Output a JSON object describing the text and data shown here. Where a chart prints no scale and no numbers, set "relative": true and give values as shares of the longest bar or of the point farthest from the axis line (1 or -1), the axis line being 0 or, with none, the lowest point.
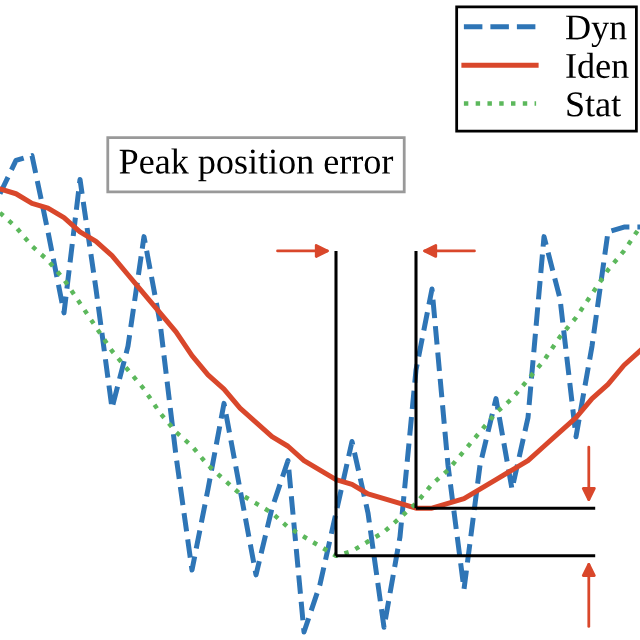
{
  "chart_data": {
    "type": "line",
    "relative": true,
    "legend": "top right",
    "annotations": [
      "Peak position error"
    ],
    "ref_lines": [
      {
        "axis": "y",
        "value": 0.26,
        "color": "#000000"
      },
      {
        "axis": "y",
        "value": 0.16,
        "color": "#000000"
      }
    ],
    "categories": [
      null,
      null,
      null,
      null,
      null,
      null,
      null,
      null,
      null,
      null,
      null,
      null,
      null,
      null,
      null,
      null,
      null,
      null,
      null,
      null,
      null,
      null,
      null,
      null,
      null,
      null,
      null,
      null,
      null,
      null,
      null,
      null,
      null,
      null,
      null,
      null,
      null,
      null,
      null,
      null,
      null
    ],
    "series": [
      {
        "name": "Dyn",
        "color": "#2e75b6",
        "line_style": "dashed",
        "values": [
          0.92,
          0.99,
          1.0,
          0.84,
          0.67,
          0.95,
          0.72,
          0.47,
          0.6,
          0.83,
          0.65,
          0.37,
          0.13,
          0.3,
          0.48,
          0.3,
          0.12,
          0.26,
          0.36,
          0.0,
          0.1,
          0.25,
          0.4,
          0.25,
          0.01,
          0.2,
          0.55,
          0.72,
          0.35,
          0.09,
          0.35,
          0.49,
          0.3,
          0.45,
          0.83,
          0.7,
          0.41,
          0.6,
          0.84,
          0.85,
          0.85
        ]
      },
      {
        "name": "Iden",
        "color": "#d9472b",
        "line_style": "solid",
        "values": [
          0.93,
          0.92,
          0.9,
          0.89,
          0.87,
          0.84,
          0.82,
          0.79,
          0.75,
          0.71,
          0.67,
          0.63,
          0.58,
          0.54,
          0.51,
          0.47,
          0.44,
          0.41,
          0.39,
          0.36,
          0.34,
          0.32,
          0.31,
          0.29,
          0.28,
          0.27,
          0.26,
          0.26,
          0.27,
          0.28,
          0.3,
          0.32,
          0.34,
          0.36,
          0.39,
          0.42,
          0.45,
          0.49,
          0.52,
          0.56,
          0.59
        ]
      },
      {
        "name": "Stat",
        "color": "#5cb85c",
        "line_style": "dotted",
        "values": [
          0.88,
          0.85,
          0.81,
          0.78,
          0.74,
          0.69,
          0.64,
          0.59,
          0.55,
          0.51,
          0.46,
          0.42,
          0.39,
          0.35,
          0.32,
          0.29,
          0.27,
          0.25,
          0.22,
          0.2,
          0.18,
          0.16,
          0.17,
          0.19,
          0.21,
          0.24,
          0.27,
          0.31,
          0.34,
          0.38,
          0.42,
          0.46,
          0.49,
          0.53,
          0.57,
          0.62,
          0.66,
          0.71,
          0.76,
          0.8,
          0.85
        ]
      }
    ]
  }
}
